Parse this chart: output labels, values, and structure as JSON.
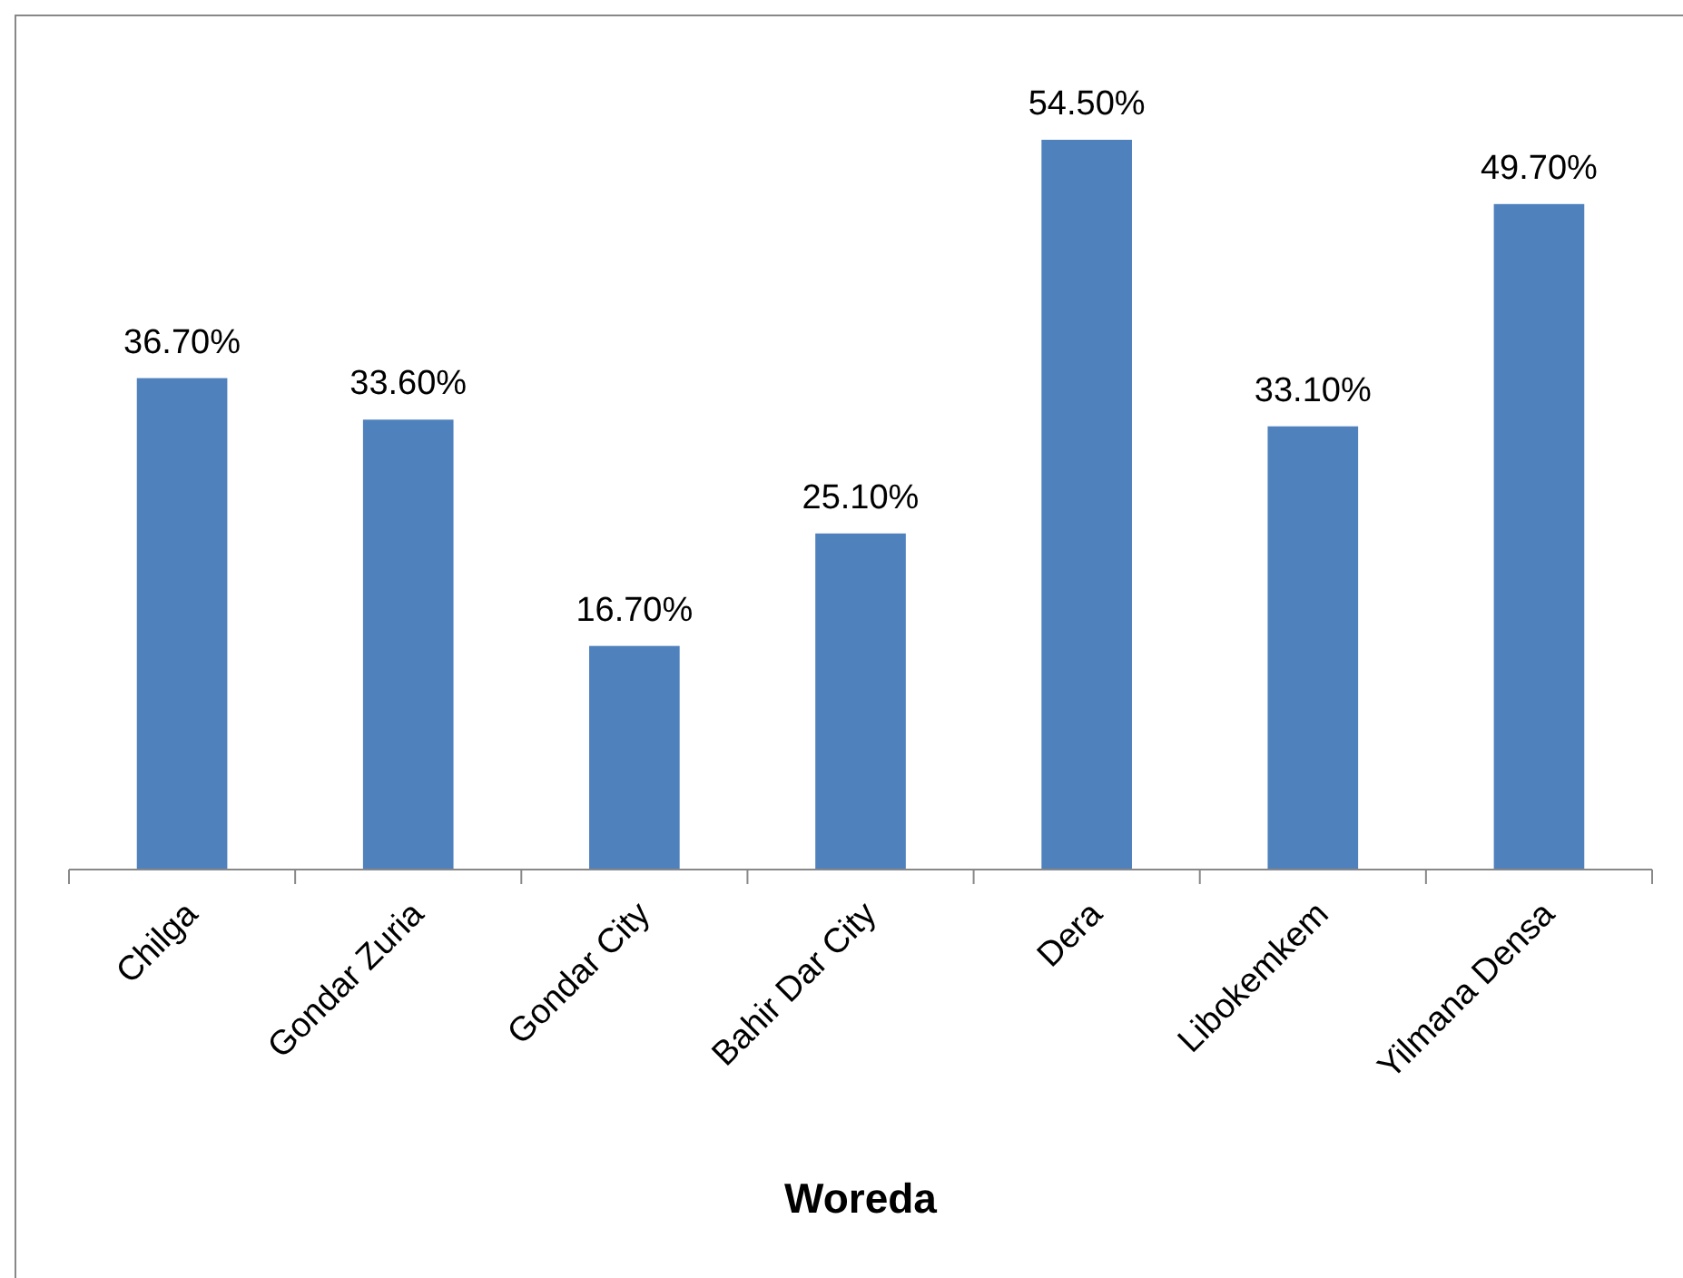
{
  "chart_data": {
    "type": "bar",
    "xlabel": "Woreda",
    "categories": [
      "Chilga",
      "Gondar Zuria",
      "Gondar City",
      "Bahir Dar City",
      "Dera",
      "Libokemkem",
      "Yilmana Densa"
    ],
    "values": [
      36.7,
      33.6,
      16.7,
      25.1,
      54.5,
      33.1,
      49.7
    ],
    "value_labels": [
      "36.70%",
      "33.60%",
      "16.70%",
      "25.10%",
      "54.50%",
      "33.10%",
      "49.70%"
    ],
    "color": "#4f81bd"
  }
}
